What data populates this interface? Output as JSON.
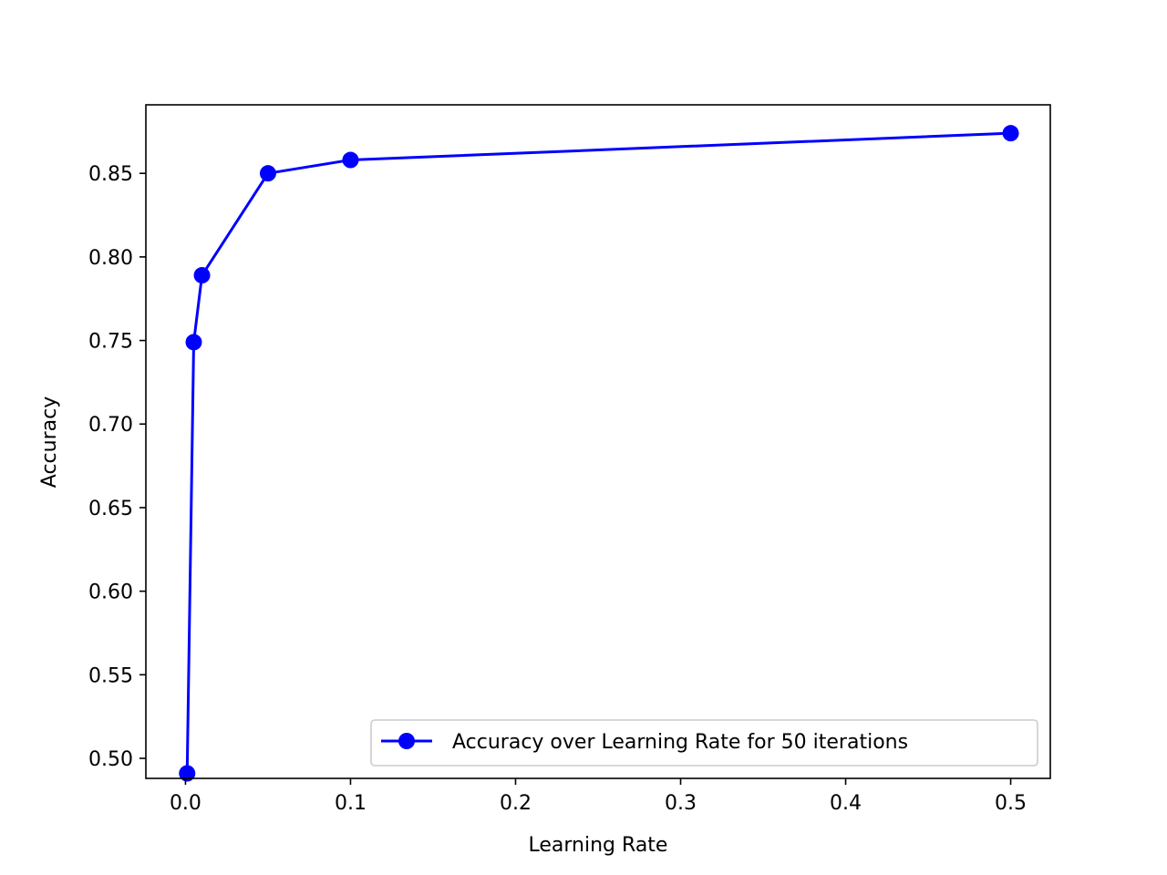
{
  "chart_data": {
    "type": "line",
    "title": "",
    "xlabel": "Learning Rate",
    "ylabel": "Accuracy",
    "xlim": [
      -0.024,
      0.524
    ],
    "ylim": [
      0.488,
      0.891
    ],
    "xticks": [
      0.0,
      0.1,
      0.2,
      0.3,
      0.4,
      0.5
    ],
    "xtick_labels": [
      "0.0",
      "0.1",
      "0.2",
      "0.3",
      "0.4",
      "0.5"
    ],
    "yticks": [
      0.5,
      0.55,
      0.6,
      0.65,
      0.7,
      0.75,
      0.8,
      0.85
    ],
    "ytick_labels": [
      "0.50",
      "0.55",
      "0.60",
      "0.65",
      "0.70",
      "0.75",
      "0.80",
      "0.85"
    ],
    "grid": false,
    "legend_position": "lower-right",
    "series": [
      {
        "name": "Accuracy over Learning Rate for 50 iterations",
        "color": "#0000ff",
        "marker": "circle",
        "x": [
          0.001,
          0.005,
          0.01,
          0.05,
          0.1,
          0.5
        ],
        "y": [
          0.491,
          0.749,
          0.789,
          0.85,
          0.858,
          0.874
        ]
      }
    ]
  }
}
